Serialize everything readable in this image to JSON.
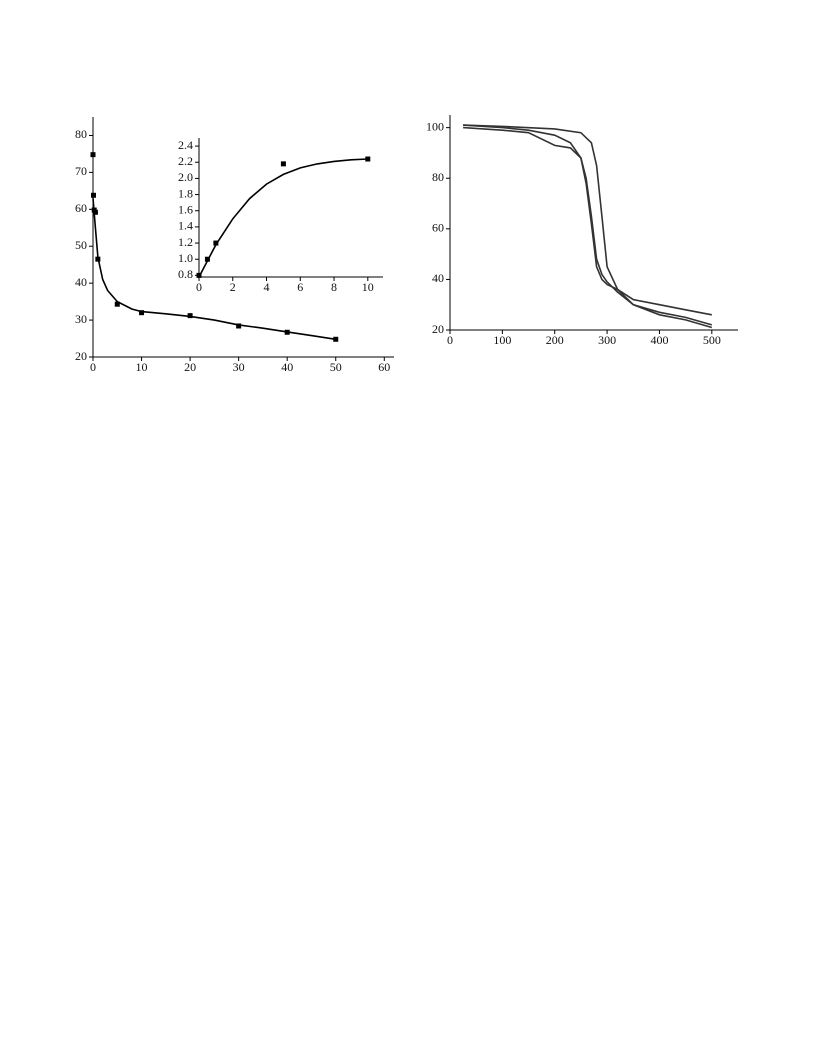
{
  "chart_data": [
    {
      "type": "scatter",
      "xlim": [
        0,
        62
      ],
      "ylim": [
        20,
        85
      ],
      "xticks": [
        0,
        10,
        20,
        30,
        40,
        50,
        60
      ],
      "yticks": [
        20,
        30,
        40,
        50,
        60,
        70,
        80
      ],
      "series": [
        {
          "mode": "markers",
          "color": "#000000",
          "x": [
            0,
            0.1,
            0.25,
            0.5,
            1,
            5,
            10,
            20,
            30,
            40,
            50
          ],
          "values": [
            74.8,
            63.8,
            59.8,
            59.2,
            46.5,
            34.3,
            32,
            31.2,
            28.4,
            26.7,
            24.8
          ]
        },
        {
          "mode": "line",
          "color": "#000000",
          "x": [
            0,
            0.5,
            1,
            2,
            3,
            5,
            8,
            10,
            15,
            20,
            25,
            30,
            35,
            40,
            45,
            50
          ],
          "values": [
            63,
            55,
            47,
            41,
            38,
            35,
            33,
            32.3,
            31.7,
            31,
            30,
            28.7,
            27.8,
            26.8,
            25.8,
            24.8
          ]
        }
      ]
    },
    {
      "type": "scatter",
      "xlim": [
        0,
        10.9
      ],
      "ylim": [
        0.78,
        2.5
      ],
      "xticks": [
        0,
        2,
        4,
        6,
        8,
        10
      ],
      "yticks": [
        0.8,
        {
          "value": 1,
          "label": "1.0"
        },
        1.2,
        1.4,
        1.6,
        1.8,
        {
          "value": 2,
          "label": "2.0"
        },
        2.2,
        2.4
      ],
      "series": [
        {
          "mode": "markers",
          "color": "#000000",
          "x": [
            0,
            0.5,
            1,
            5,
            10
          ],
          "values": [
            0.8,
            1.0,
            1.2,
            2.18,
            2.24
          ]
        },
        {
          "mode": "line",
          "color": "#000000",
          "x": [
            0,
            1,
            2,
            3,
            4,
            5,
            6,
            7,
            8,
            9,
            10
          ],
          "values": [
            0.78,
            1.18,
            1.5,
            1.75,
            1.93,
            2.05,
            2.13,
            2.18,
            2.21,
            2.23,
            2.24
          ]
        }
      ]
    },
    {
      "type": "line",
      "xlim": [
        0,
        550
      ],
      "ylim": [
        20,
        105
      ],
      "xticks": [
        0,
        100,
        200,
        300,
        400,
        500
      ],
      "yticks": [
        20,
        40,
        60,
        80,
        100
      ],
      "series": [
        {
          "mode": "line",
          "color": "#333333",
          "x": [
            25,
            100,
            200,
            250,
            270,
            280,
            290,
            300,
            320,
            350,
            400,
            450,
            500
          ],
          "values": [
            101,
            100.5,
            99.5,
            98,
            94,
            85,
            65,
            45,
            36,
            30,
            27,
            25,
            22
          ]
        },
        {
          "mode": "line",
          "color": "#333333",
          "x": [
            25,
            100,
            150,
            200,
            230,
            250,
            260,
            270,
            280,
            290,
            300,
            320,
            350,
            400,
            450,
            500
          ],
          "values": [
            101,
            100,
            99,
            97,
            94,
            88,
            80,
            65,
            48,
            42,
            39,
            35,
            30,
            26,
            24,
            21
          ]
        },
        {
          "mode": "line",
          "color": "#333333",
          "x": [
            25,
            100,
            150,
            200,
            230,
            250,
            260,
            270,
            280,
            290,
            300,
            320,
            350,
            400,
            450,
            500
          ],
          "values": [
            100,
            99,
            98,
            93,
            92,
            88,
            78,
            62,
            45,
            40,
            38,
            36,
            32,
            30,
            28,
            26
          ]
        }
      ]
    }
  ]
}
